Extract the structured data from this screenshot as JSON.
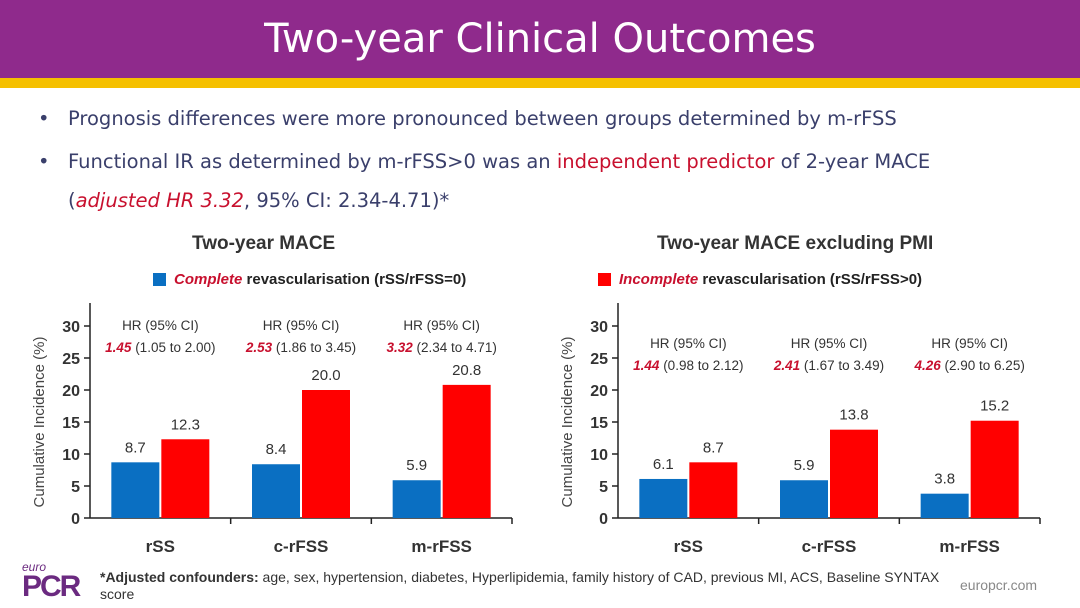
{
  "header": {
    "title": "Two-year Clinical Outcomes"
  },
  "bullets": [
    {
      "text": "Prognosis differences were more pronounced between groups determined by m-rFSS"
    },
    {
      "pre": "Functional IR as determined by m-rFSS>0 was an ",
      "highlight": "independent predictor",
      "post": " of 2-year MACE",
      "line2_open": "(",
      "line2_highlight": "adjusted HR 3.32",
      "line2_rest": ", 95% CI: 2.34-4.71)*"
    }
  ],
  "legend": [
    {
      "emph": "Complete",
      "text": " revascularisation (rSS/rFSS=0)",
      "color": "#0a6fc2"
    },
    {
      "emph": "Incomplete",
      "text": " revascularisation (rSS/rFSS>0)",
      "color": "#ff0000"
    }
  ],
  "colors": {
    "blue": "#0a6fc2",
    "red": "#ff0000",
    "header": "#8f2a8c",
    "accent_bar": "#f5c000"
  },
  "chart_data": [
    {
      "type": "bar",
      "title": "Two-year MACE",
      "ylabel": "Cumulative Incidence (%)",
      "ylim": [
        0,
        30
      ],
      "yticks": [
        0,
        5,
        10,
        15,
        20,
        25,
        30
      ],
      "categories": [
        "rSS",
        "c-rFSS",
        "m-rFSS"
      ],
      "series": [
        {
          "name": "Complete revascularisation (rSS/rFSS=0)",
          "values": [
            8.7,
            8.4,
            5.9
          ],
          "labels": [
            "8.7",
            "8.4",
            "5.9"
          ]
        },
        {
          "name": "Incomplete revascularisation (rSS/rFSS>0)",
          "values": [
            12.3,
            20.0,
            20.8
          ],
          "labels": [
            "12.3",
            "20.0",
            "20.8"
          ]
        }
      ],
      "annotations": [
        {
          "head": "HR (95% CI)",
          "hr": "1.45",
          "ci": " (1.05 to 2.00)"
        },
        {
          "head": "HR (95% CI)",
          "hr": "2.53",
          "ci": " (1.86 to 3.45)"
        },
        {
          "head": "HR (95% CI)",
          "hr": "3.32",
          "ci": " (2.34 to 4.71)"
        }
      ]
    },
    {
      "type": "bar",
      "title": "Two-year MACE excluding PMI",
      "ylabel": "Cumulative Incidence (%)",
      "ylim": [
        0,
        30
      ],
      "yticks": [
        0,
        5,
        10,
        15,
        20,
        25,
        30
      ],
      "categories": [
        "rSS",
        "c-rFSS",
        "m-rFSS"
      ],
      "series": [
        {
          "name": "Complete revascularisation (rSS/rFSS=0)",
          "values": [
            6.1,
            5.9,
            3.8
          ],
          "labels": [
            "6.1",
            "5.9",
            "3.8"
          ]
        },
        {
          "name": "Incomplete revascularisation (rSS/rFSS>0)",
          "values": [
            8.7,
            13.8,
            15.2
          ],
          "labels": [
            "8.7",
            "13.8",
            "15.2"
          ]
        }
      ],
      "annotations": [
        {
          "head": "HR (95% CI)",
          "hr": "1.44",
          "ci": " (0.98 to 2.12)"
        },
        {
          "head": "HR (95% CI)",
          "hr": "2.41",
          "ci": " (1.67 to 3.49)"
        },
        {
          "head": "HR (95% CI)",
          "hr": "4.26",
          "ci": " (2.90 to 6.25)"
        }
      ]
    }
  ],
  "footer": {
    "bold": "*Adjusted confounders:",
    "text": " age, sex, hypertension, diabetes, Hyperlipidemia, family history of CAD, previous MI, ACS, Baseline SYNTAX score",
    "site": "europcr.com",
    "logo_top": "euro",
    "logo": "PCR"
  }
}
